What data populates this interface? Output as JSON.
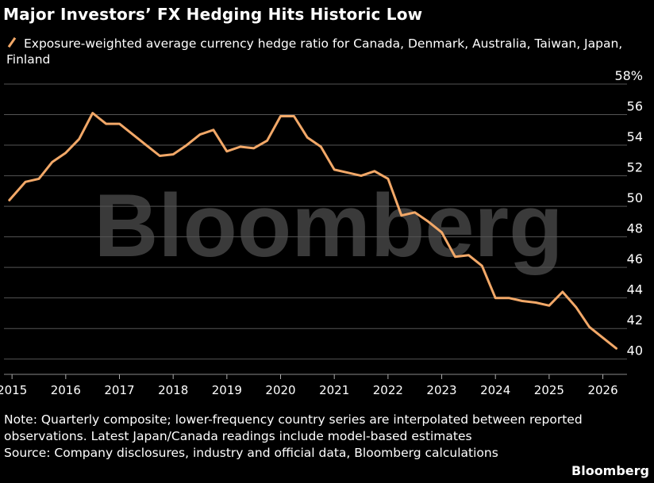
{
  "title": "Major Investors’ FX Hedging Hits Historic Low",
  "legend": {
    "label": "Exposure-weighted average currency hedge ratio for Canada, Denmark, Australia, Taiwan, Japan, Finland"
  },
  "watermark": "Bloomberg",
  "notes": {
    "note": "Note: Quarterly composite; lower-frequency country series are interpolated between reported observations. Latest Japan/Canada readings include model-based estimates",
    "source": "Source: Company disclosures, industry and official data, Bloomberg calculations"
  },
  "brand": "Bloomberg",
  "colors": {
    "line": "#f2a868",
    "background": "#000000",
    "grid": "#555555",
    "watermark": "#3a3a3a"
  },
  "chart_data": {
    "type": "line",
    "title": "Major Investors’ FX Hedging Hits Historic Low",
    "ylim": [
      39,
      58
    ],
    "xlim": [
      2014.85,
      2026.45
    ],
    "y_ticks": [
      40,
      42,
      44,
      46,
      48,
      50,
      52,
      54,
      56,
      58
    ],
    "y_tick_labels": [
      "40",
      "42",
      "44",
      "46",
      "48",
      "50",
      "52",
      "54",
      "56",
      "58%"
    ],
    "x_ticks": [
      "2015",
      "2016",
      "2017",
      "2018",
      "2019",
      "2020",
      "2021",
      "2022",
      "2023",
      "2024",
      "2025",
      "2026"
    ],
    "grid": "horizontal",
    "series": [
      {
        "name": "Exposure-weighted average currency hedge ratio for Canada, Denmark, Australia, Taiwan, Japan, Finland",
        "x": [
          2014.95,
          2015.25,
          2015.5,
          2015.75,
          2016.0,
          2016.25,
          2016.5,
          2016.75,
          2017.0,
          2017.25,
          2017.5,
          2017.75,
          2018.0,
          2018.25,
          2018.5,
          2018.75,
          2019.0,
          2019.25,
          2019.5,
          2019.75,
          2020.0,
          2020.25,
          2020.5,
          2020.75,
          2021.0,
          2021.25,
          2021.5,
          2021.75,
          2022.0,
          2022.25,
          2022.5,
          2022.75,
          2023.0,
          2023.25,
          2023.5,
          2023.75,
          2024.0,
          2024.25,
          2024.5,
          2024.75,
          2025.0,
          2025.25,
          2025.5,
          2025.75,
          2026.0,
          2026.25
        ],
        "y": [
          50.4,
          51.6,
          51.8,
          52.9,
          53.5,
          54.4,
          56.1,
          55.4,
          55.4,
          54.7,
          54.0,
          53.3,
          53.4,
          54.0,
          54.7,
          55.0,
          53.6,
          53.9,
          53.8,
          54.3,
          55.9,
          55.9,
          54.5,
          53.9,
          52.4,
          52.2,
          52.0,
          52.3,
          51.8,
          49.4,
          49.6,
          49.0,
          48.3,
          46.7,
          46.8,
          46.1,
          44.0,
          44.0,
          43.8,
          43.7,
          43.5,
          44.4,
          43.4,
          42.1,
          41.4,
          40.7
        ]
      }
    ]
  }
}
